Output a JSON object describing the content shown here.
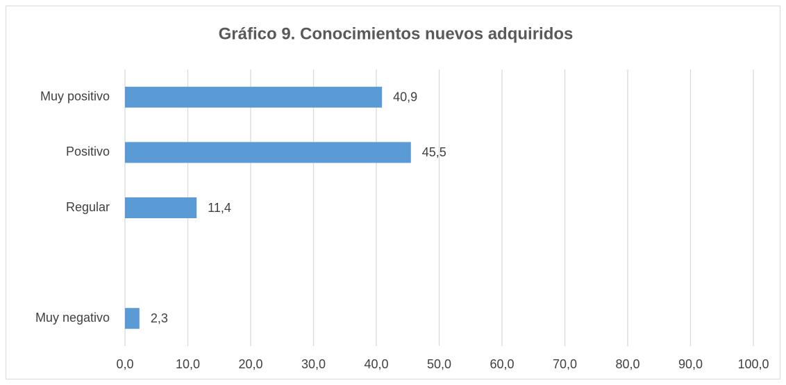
{
  "chart_data": {
    "type": "bar",
    "orientation": "horizontal",
    "title": "Gráfico 9. Conocimientos nuevos adquiridos",
    "categories": [
      "Muy positivo",
      "Positivo",
      "Regular",
      null,
      "Muy negativo"
    ],
    "values": [
      40.9,
      45.5,
      11.4,
      null,
      2.3
    ],
    "value_labels": [
      "40,9",
      "45,5",
      "11,4",
      null,
      "2,3"
    ],
    "color": "#5b9bd5",
    "xlim": [
      0,
      100
    ],
    "xticks": [
      {
        "value": 0,
        "label": "0,0"
      },
      {
        "value": 10,
        "label": "10,0"
      },
      {
        "value": 20,
        "label": "20,0"
      },
      {
        "value": 30,
        "label": "30,0"
      },
      {
        "value": 40,
        "label": "40,0"
      },
      {
        "value": 50,
        "label": "50,0"
      },
      {
        "value": 60,
        "label": "60,0"
      },
      {
        "value": 70,
        "label": "70,0"
      },
      {
        "value": 80,
        "label": "80,0"
      },
      {
        "value": 90,
        "label": "90,0"
      },
      {
        "value": 100,
        "label": "100,0"
      }
    ],
    "grid": true
  }
}
